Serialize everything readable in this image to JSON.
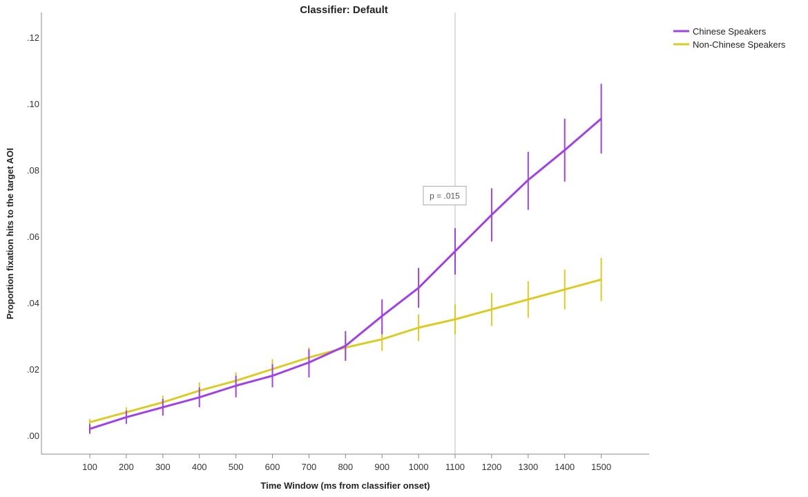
{
  "chart_data": {
    "type": "line",
    "title": "Classifier: Default",
    "xlabel": "Time Window (ms from classifier onset)",
    "ylabel": "Proportion fixation hits to the target AOI",
    "x": [
      100,
      200,
      300,
      400,
      500,
      600,
      700,
      800,
      900,
      1000,
      1100,
      1200,
      1300,
      1400,
      1500
    ],
    "x_tick_labels": [
      "100",
      "200",
      "300",
      "400",
      "500",
      "600",
      "700",
      "800",
      "900",
      "1000",
      "1100",
      "1200",
      "1300",
      "1400",
      "1500"
    ],
    "y_ticks": [
      0.0,
      0.02,
      0.04,
      0.06,
      0.08,
      0.1,
      0.12
    ],
    "y_tick_labels": [
      ".00",
      ".02",
      ".04",
      ".06",
      ".08",
      ".10",
      ".12"
    ],
    "ylim": [
      -0.005,
      0.125
    ],
    "grid": false,
    "legend_position": "top-right",
    "series": [
      {
        "name": "Chinese Speakers",
        "color": "#a040e8",
        "values": [
          0.002,
          0.0055,
          0.0085,
          0.0115,
          0.015,
          0.018,
          0.022,
          0.027,
          0.036,
          0.0445,
          0.0555,
          0.0665,
          0.077,
          0.086,
          0.0955
        ],
        "error_low": [
          0.0005,
          0.0035,
          0.006,
          0.0085,
          0.0115,
          0.0145,
          0.0175,
          0.0225,
          0.0305,
          0.0385,
          0.0485,
          0.0585,
          0.068,
          0.0765,
          0.085
        ],
        "error_high": [
          0.0035,
          0.0075,
          0.011,
          0.0145,
          0.018,
          0.0215,
          0.026,
          0.0315,
          0.041,
          0.0505,
          0.0625,
          0.0745,
          0.0855,
          0.0955,
          0.106
        ]
      },
      {
        "name": "Non-Chinese Speakers",
        "color": "#dccb23",
        "values": [
          0.004,
          0.007,
          0.01,
          0.0135,
          0.0165,
          0.02,
          0.0235,
          0.0265,
          0.029,
          0.0325,
          0.035,
          0.038,
          0.041,
          0.044,
          0.047
        ],
        "error_low": [
          0.003,
          0.0055,
          0.008,
          0.011,
          0.014,
          0.017,
          0.0205,
          0.023,
          0.0255,
          0.0285,
          0.0305,
          0.033,
          0.0355,
          0.038,
          0.0405
        ],
        "error_high": [
          0.005,
          0.0085,
          0.012,
          0.016,
          0.019,
          0.023,
          0.0265,
          0.03,
          0.033,
          0.0365,
          0.0395,
          0.043,
          0.0465,
          0.05,
          0.0535
        ]
      }
    ],
    "reference_line": {
      "x": 1100,
      "color": "#c8c8c8"
    },
    "annotation": {
      "text": "p = .015",
      "x": 1100,
      "y": 0.072
    }
  }
}
